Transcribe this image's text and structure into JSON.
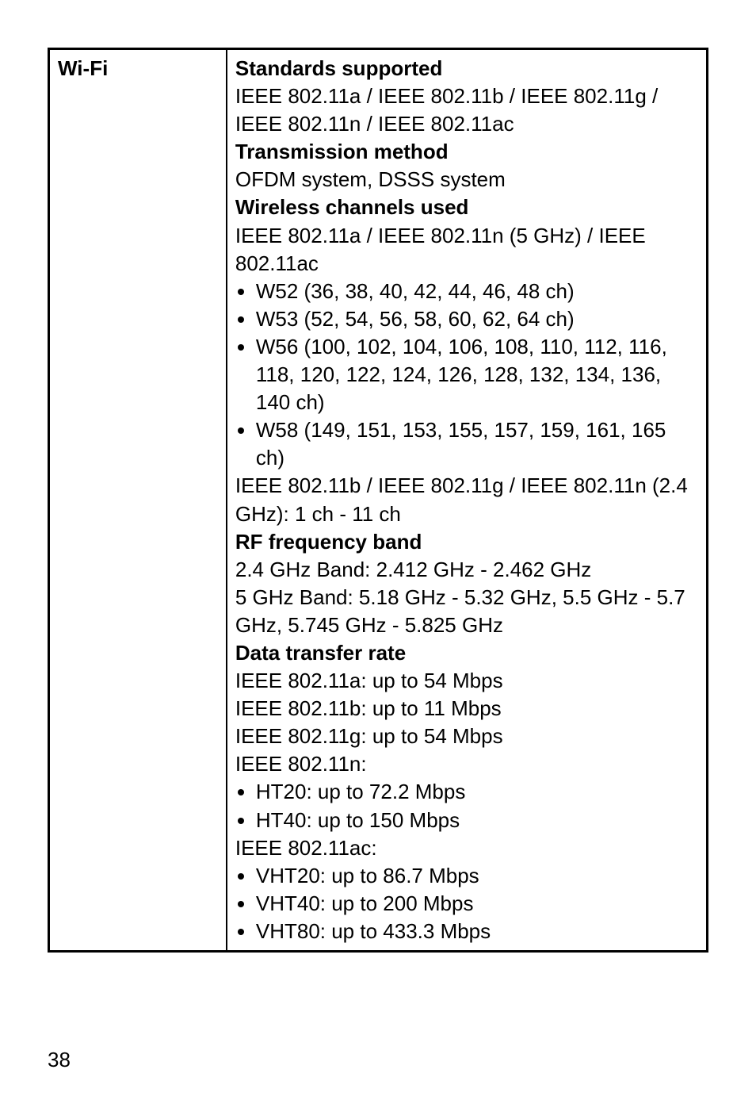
{
  "table": {
    "row_label": "Wi-Fi",
    "sections": {
      "standards": {
        "heading": "Standards supported",
        "lines": [
          "IEEE 802.11a / IEEE 802.11b / IEEE 802.11g / IEEE 802.11n / IEEE 802.11ac"
        ]
      },
      "transmission": {
        "heading": "Transmission method",
        "lines": [
          "OFDM system, DSSS system"
        ]
      },
      "channels": {
        "heading": "Wireless channels used",
        "intro": "IEEE 802.11a / IEEE 802.11n (5 GHz) / IEEE 802.11ac",
        "bullets": [
          "W52 (36, 38, 40, 42, 44, 46, 48 ch)",
          "W53 (52, 54, 56, 58, 60, 62, 64 ch)",
          "W56 (100, 102, 104, 106, 108, 110, 112, 116, 118, 120, 122, 124, 126, 128, 132, 134, 136, 140 ch)",
          "W58 (149, 151, 153, 155, 157, 159, 161, 165 ch)"
        ],
        "outro": "IEEE 802.11b / IEEE 802.11g / IEEE 802.11n (2.4 GHz): 1 ch - 11 ch"
      },
      "rf": {
        "heading": "RF frequency band",
        "lines": [
          "2.4 GHz Band: 2.412 GHz - 2.462 GHz",
          "5 GHz Band: 5.18 GHz - 5.32 GHz, 5.5 GHz - 5.7 GHz, 5.745 GHz - 5.825 GHz"
        ]
      },
      "rate": {
        "heading": "Data transfer rate",
        "lines": [
          "IEEE 802.11a: up to 54 Mbps",
          "IEEE 802.11b: up to 11 Mbps",
          "IEEE 802.11g: up to 54 Mbps",
          "IEEE 802.11n:"
        ],
        "bullets_n": [
          "HT20: up to 72.2 Mbps",
          "HT40: up to 150 Mbps"
        ],
        "line_ac": "IEEE 802.11ac:",
        "bullets_ac": [
          "VHT20: up to 86.7 Mbps",
          "VHT40: up to 200 Mbps",
          "VHT80: up to 433.3 Mbps"
        ]
      }
    }
  },
  "page_number": "38"
}
